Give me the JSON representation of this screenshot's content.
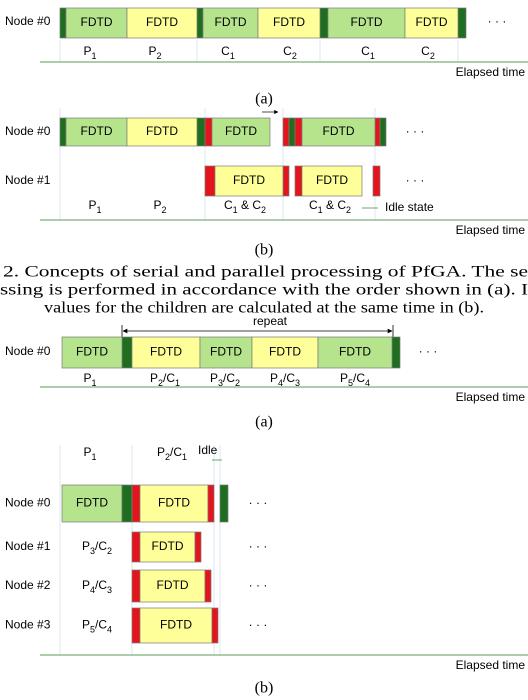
{
  "fig1a": {
    "node": "Node #0",
    "blocks": [
      "FDTD",
      "FDTD",
      "FDTD",
      "FDTD",
      "FDTD",
      "FDTD"
    ],
    "labels": [
      [
        "P",
        "1"
      ],
      [
        "P",
        "2"
      ],
      [
        "C",
        "1"
      ],
      [
        "C",
        "2"
      ],
      [
        "C",
        "1"
      ],
      [
        "C",
        "2"
      ]
    ],
    "dots": "· · ·",
    "axis": "Elapsed time",
    "caption": "(a)"
  },
  "fig1b": {
    "nodes": [
      "Node #0",
      "Node #1"
    ],
    "blocks": [
      "FDTD",
      "FDTD",
      "FDTD",
      "FDTD",
      "FDTD",
      "FDTD"
    ],
    "labels": [
      [
        "P",
        "1"
      ],
      [
        "P",
        "2"
      ],
      [
        "C",
        "1",
        " & C",
        "2"
      ],
      [
        "C",
        "1",
        " & C",
        "2"
      ]
    ],
    "idle": "Idle state",
    "dots": [
      "· · ·",
      "· · ·"
    ],
    "axis": "Elapsed time",
    "caption": "(b)"
  },
  "caption": {
    "lines": [
      "2. Concepts of serial and parallel processing of PfGA. The se",
      "ssing is performed in accordance with the order shown in (a). I",
      "values for the children are calculated at the same time in (b)."
    ]
  },
  "fig2a": {
    "repeat": "repeat",
    "node": "Node #0",
    "blocks": [
      "FDTD",
      "FDTD",
      "FDTD",
      "FDTD",
      "FDTD"
    ],
    "labels": [
      [
        "P",
        "1"
      ],
      [
        "P",
        "2",
        "/C",
        "1"
      ],
      [
        "P",
        "3",
        "/C",
        "2"
      ],
      [
        "P",
        "4",
        "/C",
        "3"
      ],
      [
        "P",
        "5",
        "/C",
        "4"
      ]
    ],
    "dots": "· · ·",
    "axis": "Elapsed time",
    "caption": "(a)"
  },
  "fig2b": {
    "top_labels": [
      [
        "P",
        "1"
      ],
      [
        "P",
        "2",
        "/C",
        "1"
      ]
    ],
    "idle": "Idle",
    "nodes": [
      "Node #0",
      "Node #1",
      "Node #2",
      "Node #3"
    ],
    "blocks": [
      "FDTD",
      "FDTD",
      "FDTD",
      "FDTD",
      "FDTD"
    ],
    "labels": [
      [
        "P",
        "3",
        "/C",
        "2"
      ],
      [
        "P",
        "4",
        "/C",
        "3"
      ],
      [
        "P",
        "5",
        "/C",
        "4"
      ]
    ],
    "dots": [
      "· · ·",
      "· · ·",
      "· · ·",
      "· · ·"
    ],
    "axis": "Elapsed time",
    "caption": "(b)"
  }
}
